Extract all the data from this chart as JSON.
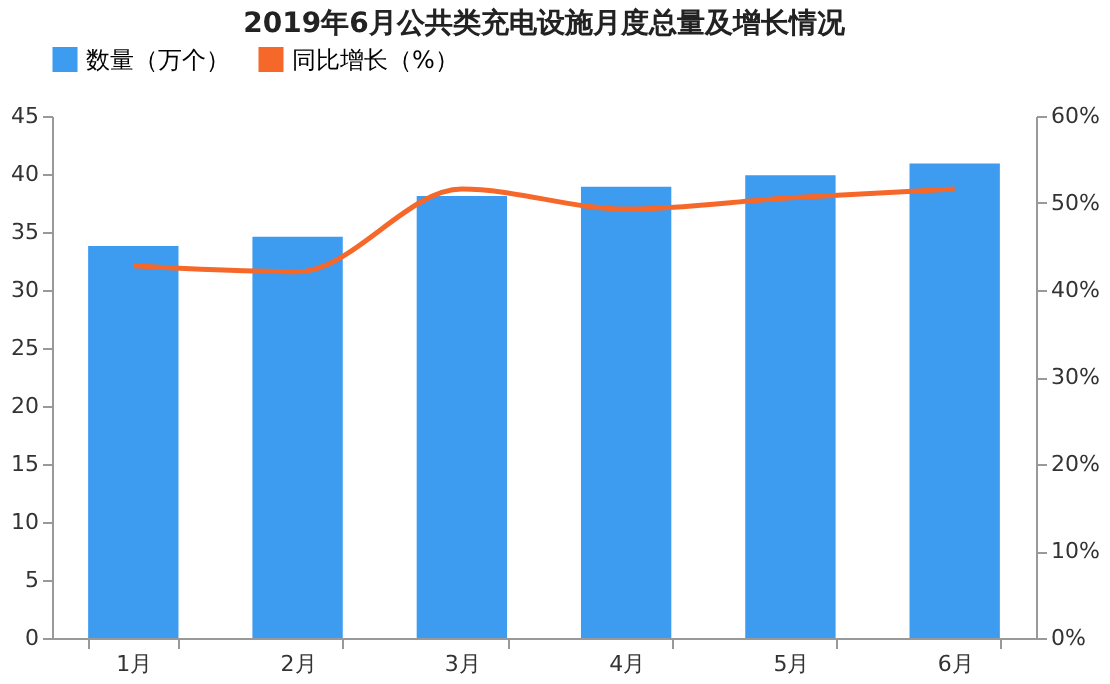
{
  "chart_data": {
    "type": "bar",
    "title": "2019年6月公共类充电设施月度总量及增长情况",
    "categories": [
      "1月",
      "2月",
      "3月",
      "4月",
      "5月",
      "6月"
    ],
    "series": [
      {
        "name": "数量（万个）",
        "color": "#3d9bf0",
        "values": [
          33.8,
          34.6,
          38.1,
          38.9,
          39.9,
          40.9
        ]
      },
      {
        "name": "同比增长（%）",
        "type": "line",
        "axis": "y2",
        "color": "#f5682a",
        "values": [
          42.8,
          42.1,
          51.6,
          49.3,
          50.6,
          51.6
        ]
      }
    ],
    "ylim": [
      0,
      45
    ],
    "yticks": [
      0,
      5,
      10,
      15,
      20,
      25,
      30,
      35,
      40,
      45
    ],
    "y2lim": [
      0,
      60
    ],
    "y2ticks": [
      {
        "value": 0,
        "label": "0%"
      },
      {
        "value": 10,
        "label": "10%"
      },
      {
        "value": 20,
        "label": "20%"
      },
      {
        "value": 30,
        "label": "30%"
      },
      {
        "value": 40,
        "label": "40%"
      },
      {
        "value": 50,
        "label": "50%"
      },
      {
        "value": 60,
        "label": "60%"
      }
    ],
    "legend": "top",
    "grid": false
  }
}
